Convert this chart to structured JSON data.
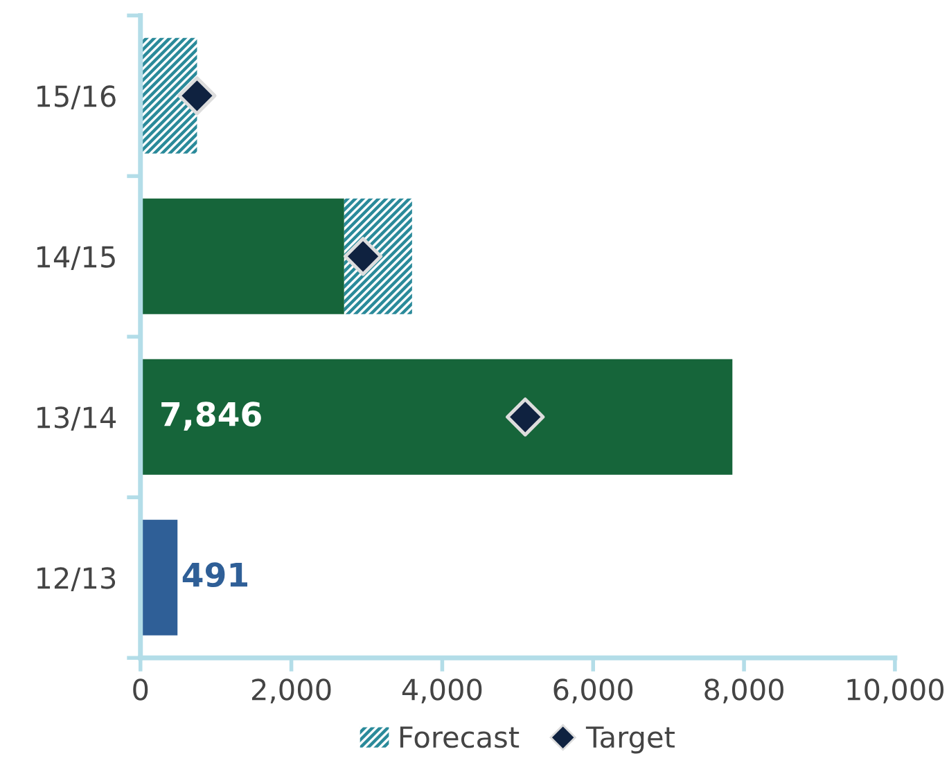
{
  "chart_data": {
    "type": "bar",
    "orientation": "horizontal",
    "stacked": true,
    "categories": [
      "15/16",
      "14/15",
      "13/14",
      "12/13"
    ],
    "series": [
      {
        "colors": [
          "#16653a",
          "#16653a",
          "#16653a",
          "#2f5f97"
        ],
        "values": [
          null,
          2700,
          7846,
          491
        ],
        "value_labels": [
          null,
          null,
          "7,846",
          "491"
        ]
      },
      {
        "name": "Forecast",
        "color": "#2a8a9a",
        "values": [
          750,
          900,
          null,
          null
        ]
      },
      {
        "name": "Target",
        "type": "scatter",
        "marker": "diamond",
        "color": "#0f2240",
        "x": [
          "15/16",
          "14/15",
          "13/14"
        ],
        "values": [
          750,
          2950,
          5100
        ]
      }
    ],
    "xlim": [
      0,
      10000
    ],
    "xticks": [
      0,
      {
        "value": 2000,
        "label": "2,000"
      },
      {
        "value": 4000,
        "label": "4,000"
      },
      {
        "value": 6000,
        "label": "6,000"
      },
      {
        "value": 8000,
        "label": "8,000"
      },
      {
        "value": 10000,
        "label": "10,000"
      }
    ],
    "grid": false,
    "legend": "bottom"
  }
}
